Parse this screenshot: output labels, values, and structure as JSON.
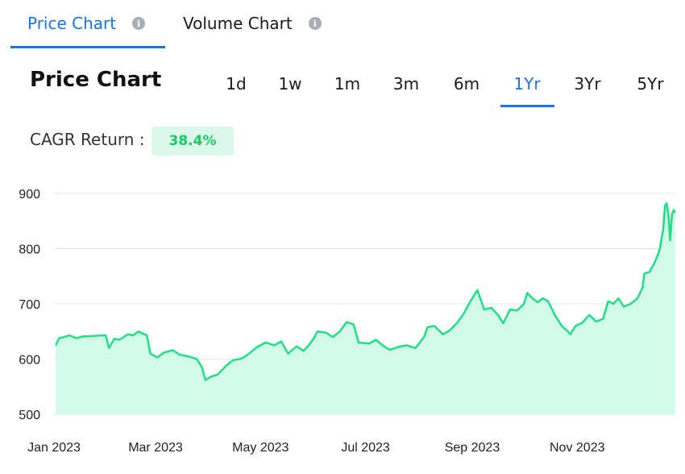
{
  "tabs": [
    {
      "label": "Price Chart",
      "active": true
    },
    {
      "label": "Volume Chart",
      "active": false
    }
  ],
  "info_icon_glyph": "i",
  "chart_title": "Price Chart",
  "ranges": [
    "1d",
    "1w",
    "1m",
    "3m",
    "6m",
    "1Yr",
    "3Yr",
    "5Yr"
  ],
  "active_range": "1Yr",
  "cagr": {
    "label": "CAGR Return :",
    "value": "38.4%"
  },
  "colors": {
    "accent": "#1a73e8",
    "line": "#1ede86",
    "fill": "#d3f9e8",
    "badge_bg": "#dcf8eb",
    "badge_text": "#17c964"
  },
  "chart_data": {
    "type": "area",
    "title": "",
    "xlabel": "",
    "ylabel": "",
    "ylim": [
      500,
      900
    ],
    "yticks": [
      500,
      600,
      700,
      800,
      900
    ],
    "grid": true,
    "xlim": [
      "2023-01-01",
      "2023-12-28"
    ],
    "xticks": [
      {
        "date": "2023-01-01",
        "label": "Jan 2023"
      },
      {
        "date": "2023-03-01",
        "label": "Mar 2023"
      },
      {
        "date": "2023-05-01",
        "label": "May 2023"
      },
      {
        "date": "2023-07-01",
        "label": "Jul 2023"
      },
      {
        "date": "2023-09-01",
        "label": "Sep 2023"
      },
      {
        "date": "2023-11-01",
        "label": "Nov 2023"
      }
    ],
    "series": [
      {
        "values": [
          [
            "2023-01-02",
            625
          ],
          [
            "2023-01-04",
            638
          ],
          [
            "2023-01-07",
            640
          ],
          [
            "2023-01-10",
            643
          ],
          [
            "2023-01-14",
            638
          ],
          [
            "2023-01-18",
            641
          ],
          [
            "2023-01-24",
            642
          ],
          [
            "2023-01-31",
            643
          ],
          [
            "2023-02-02",
            620
          ],
          [
            "2023-02-05",
            637
          ],
          [
            "2023-02-08",
            635
          ],
          [
            "2023-02-13",
            645
          ],
          [
            "2023-02-16",
            643
          ],
          [
            "2023-02-19",
            650
          ],
          [
            "2023-02-24",
            643
          ],
          [
            "2023-02-26",
            610
          ],
          [
            "2023-03-02",
            603
          ],
          [
            "2023-03-06",
            612
          ],
          [
            "2023-03-11",
            616
          ],
          [
            "2023-03-15",
            608
          ],
          [
            "2023-03-20",
            605
          ],
          [
            "2023-03-25",
            600
          ],
          [
            "2023-03-28",
            585
          ],
          [
            "2023-03-30",
            562
          ],
          [
            "2023-04-02",
            568
          ],
          [
            "2023-04-06",
            572
          ],
          [
            "2023-04-11",
            588
          ],
          [
            "2023-04-15",
            598
          ],
          [
            "2023-04-20",
            601
          ],
          [
            "2023-04-24",
            609
          ],
          [
            "2023-04-29",
            622
          ],
          [
            "2023-05-04",
            630
          ],
          [
            "2023-05-09",
            625
          ],
          [
            "2023-05-13",
            632
          ],
          [
            "2023-05-17",
            610
          ],
          [
            "2023-05-22",
            623
          ],
          [
            "2023-05-26",
            615
          ],
          [
            "2023-05-29",
            625
          ],
          [
            "2023-06-01",
            638
          ],
          [
            "2023-06-03",
            650
          ],
          [
            "2023-06-08",
            648
          ],
          [
            "2023-06-12",
            640
          ],
          [
            "2023-06-16",
            650
          ],
          [
            "2023-06-20",
            667
          ],
          [
            "2023-06-24",
            663
          ],
          [
            "2023-06-27",
            630
          ],
          [
            "2023-07-03",
            628
          ],
          [
            "2023-07-07",
            635
          ],
          [
            "2023-07-11",
            625
          ],
          [
            "2023-07-15",
            617
          ],
          [
            "2023-07-20",
            622
          ],
          [
            "2023-07-25",
            625
          ],
          [
            "2023-07-30",
            620
          ],
          [
            "2023-08-04",
            640
          ],
          [
            "2023-08-06",
            658
          ],
          [
            "2023-08-10",
            660
          ],
          [
            "2023-08-15",
            645
          ],
          [
            "2023-08-19",
            652
          ],
          [
            "2023-08-23",
            665
          ],
          [
            "2023-08-27",
            682
          ],
          [
            "2023-08-31",
            705
          ],
          [
            "2023-09-04",
            725
          ],
          [
            "2023-09-08",
            690
          ],
          [
            "2023-09-12",
            693
          ],
          [
            "2023-09-16",
            680
          ],
          [
            "2023-09-19",
            665
          ],
          [
            "2023-09-23",
            690
          ],
          [
            "2023-09-27",
            688
          ],
          [
            "2023-10-01",
            700
          ],
          [
            "2023-10-03",
            720
          ],
          [
            "2023-10-06",
            710
          ],
          [
            "2023-10-09",
            703
          ],
          [
            "2023-10-12",
            710
          ],
          [
            "2023-10-15",
            705
          ],
          [
            "2023-10-19",
            680
          ],
          [
            "2023-10-23",
            660
          ],
          [
            "2023-10-26",
            652
          ],
          [
            "2023-10-28",
            645
          ],
          [
            "2023-10-31",
            660
          ],
          [
            "2023-11-04",
            666
          ],
          [
            "2023-11-08",
            680
          ],
          [
            "2023-11-12",
            668
          ],
          [
            "2023-11-16",
            673
          ],
          [
            "2023-11-19",
            705
          ],
          [
            "2023-11-22",
            700
          ],
          [
            "2023-11-25",
            710
          ],
          [
            "2023-11-28",
            695
          ],
          [
            "2023-12-02",
            700
          ],
          [
            "2023-12-06",
            710
          ],
          [
            "2023-12-09",
            730
          ],
          [
            "2023-12-10",
            755
          ],
          [
            "2023-12-13",
            758
          ],
          [
            "2023-12-16",
            775
          ],
          [
            "2023-12-18",
            790
          ],
          [
            "2023-12-19",
            800
          ],
          [
            "2023-12-21",
            835
          ],
          [
            "2023-12-22",
            878
          ],
          [
            "2023-12-23",
            882
          ],
          [
            "2023-12-24",
            860
          ],
          [
            "2023-12-25",
            815
          ],
          [
            "2023-12-26",
            860
          ],
          [
            "2023-12-27",
            870
          ],
          [
            "2023-12-28",
            865
          ]
        ]
      }
    ]
  }
}
